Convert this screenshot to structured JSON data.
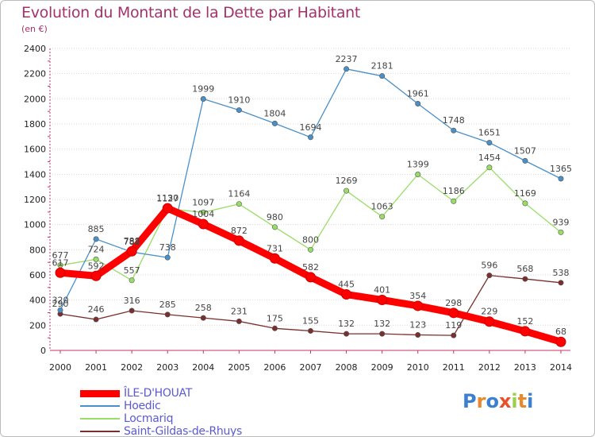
{
  "chart_data": {
    "type": "line",
    "title": "Evolution du Montant de la Dette par Habitant",
    "subtitle": "(en €)",
    "x": [
      "2000",
      "2001",
      "2002",
      "2003",
      "2004",
      "2005",
      "2006",
      "2007",
      "2008",
      "2009",
      "2010",
      "2011",
      "2012",
      "2013",
      "2014"
    ],
    "ylim": [
      0,
      2400
    ],
    "yticks": [
      0,
      200,
      400,
      600,
      800,
      1000,
      1200,
      1400,
      1600,
      1800,
      2000,
      2200,
      2400
    ],
    "grid": "horizontal",
    "legend_position": "bottom-left",
    "series": [
      {
        "name": "ÎLE-D'HOUAT",
        "color": "#ff0000",
        "values": [
          617,
          592,
          788,
          1130,
          1004,
          872,
          731,
          582,
          445,
          401,
          354,
          298,
          229,
          152,
          68
        ]
      },
      {
        "name": "Hoedic",
        "color": "#4a90c8",
        "values": [
          320,
          885,
          782,
          738,
          1999,
          1910,
          1804,
          1694,
          2237,
          2181,
          1961,
          1748,
          1651,
          1507,
          1365
        ]
      },
      {
        "name": "Locmariq",
        "color": "#99dd66",
        "values": [
          677,
          724,
          557,
          1127,
          1097,
          1164,
          980,
          800,
          1269,
          1063,
          1399,
          1186,
          1454,
          1169,
          939
        ]
      },
      {
        "name": "Saint-Gildas-de-Rhuys",
        "color": "#7a2f2f",
        "values": [
          290,
          246,
          316,
          285,
          258,
          231,
          175,
          155,
          132,
          132,
          123,
          119,
          596,
          568,
          538
        ]
      }
    ]
  },
  "logo": {
    "letters": [
      "P",
      "r",
      "o",
      "x",
      "i",
      "t",
      "i"
    ],
    "colors": [
      "#3b7fd1",
      "#e8892b",
      "#3b7fd1",
      "#e84f2b",
      "#9ad14b",
      "#e8892b",
      "#3b7fd1"
    ]
  }
}
